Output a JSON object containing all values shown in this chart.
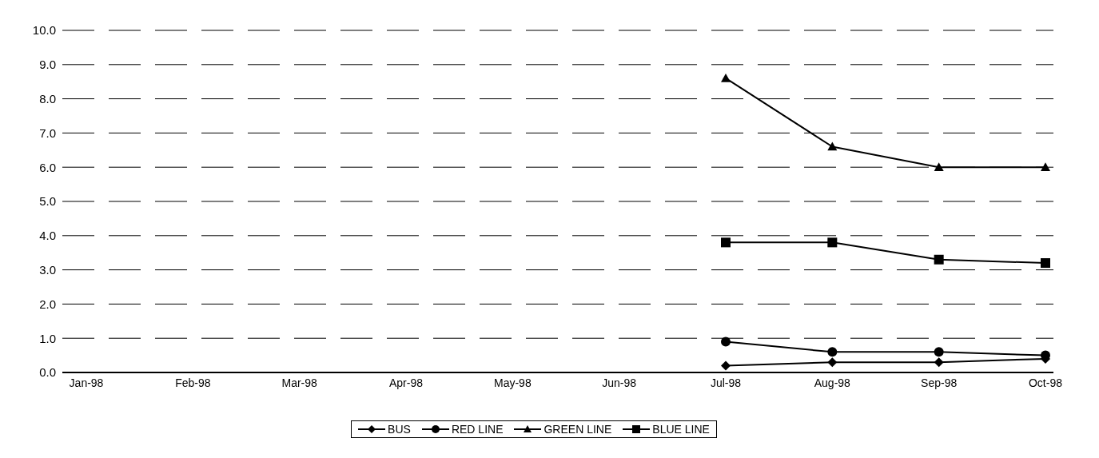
{
  "chart_data": {
    "type": "line",
    "categories": [
      "Jan-98",
      "Feb-98",
      "Mar-98",
      "Apr-98",
      "May-98",
      "Jun-98",
      "Jul-98",
      "Aug-98",
      "Sep-98",
      "Oct-98"
    ],
    "series": [
      {
        "name": "BUS",
        "color": "#000000",
        "marker": "diamond",
        "values": [
          null,
          null,
          null,
          null,
          null,
          null,
          0.2,
          0.3,
          0.3,
          0.4
        ]
      },
      {
        "name": "RED LINE",
        "color": "#000000",
        "marker": "circle",
        "values": [
          null,
          null,
          null,
          null,
          null,
          null,
          0.9,
          0.6,
          0.6,
          0.5
        ]
      },
      {
        "name": "GREEN LINE",
        "color": "#000000",
        "marker": "triangle",
        "values": [
          null,
          null,
          null,
          null,
          null,
          null,
          8.6,
          6.6,
          6.0,
          6.0
        ]
      },
      {
        "name": "BLUE LINE",
        "color": "#000000",
        "marker": "square",
        "values": [
          null,
          null,
          null,
          null,
          null,
          null,
          3.8,
          3.8,
          3.3,
          3.2
        ]
      }
    ],
    "ylim": [
      0,
      10
    ],
    "yticks": [
      {
        "value": 0,
        "label": "0.0"
      },
      {
        "value": 1,
        "label": "1.0"
      },
      {
        "value": 2,
        "label": "2.0"
      },
      {
        "value": 3,
        "label": "3.0"
      },
      {
        "value": 4,
        "label": "4.0"
      },
      {
        "value": 5,
        "label": "5.0"
      },
      {
        "value": 6,
        "label": "6.0"
      },
      {
        "value": 7,
        "label": "7.0"
      },
      {
        "value": 8,
        "label": "8.0"
      },
      {
        "value": 9,
        "label": "9.0"
      },
      {
        "value": 10,
        "label": "10.0"
      }
    ],
    "grid": "y",
    "legend": "bottom"
  }
}
